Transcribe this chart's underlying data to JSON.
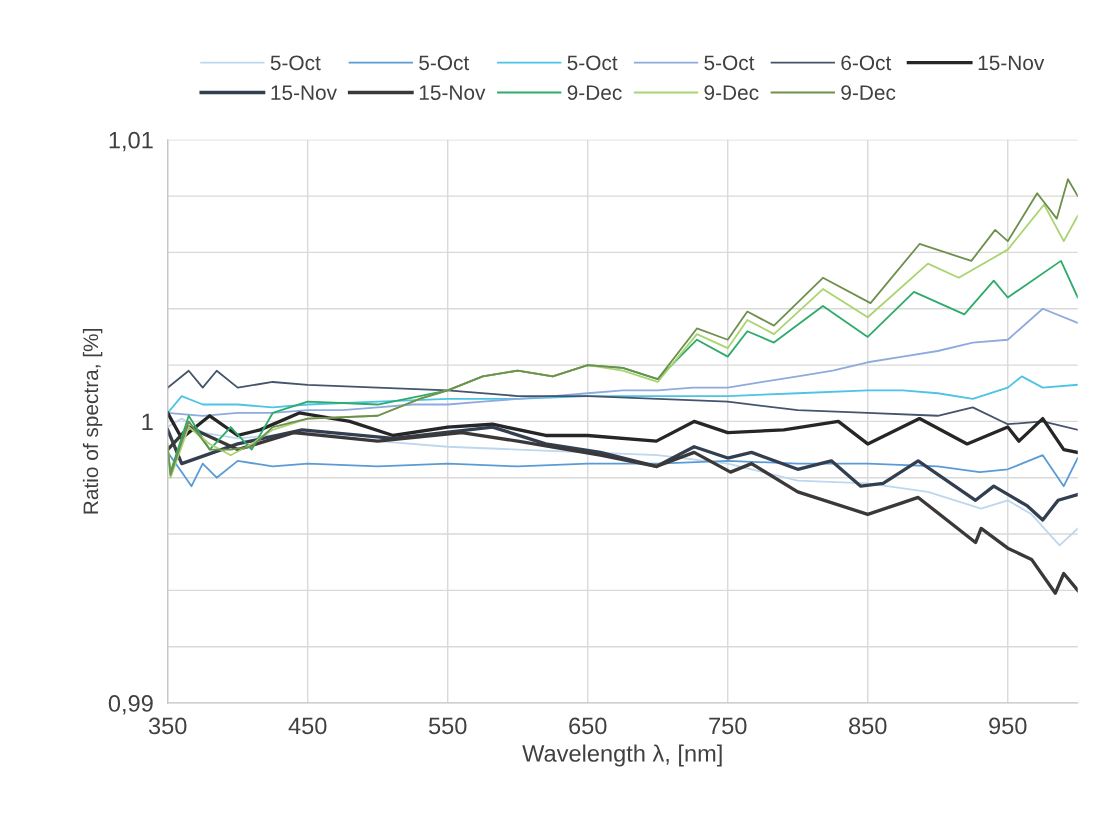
{
  "chart_data": {
    "type": "line",
    "xlabel": "Wavelength λ, [nm]",
    "ylabel": "Ratio of spectra, [%]",
    "xlim": [
      350,
      1000
    ],
    "xticks": [
      350,
      450,
      550,
      650,
      750,
      850,
      950
    ],
    "ylim": [
      0.99,
      1.01
    ],
    "yticks": [
      {
        "value": 0.99,
        "label": "0,99"
      },
      {
        "value": 0.992,
        "label": null
      },
      {
        "value": 0.994,
        "label": null
      },
      {
        "value": 0.996,
        "label": null
      },
      {
        "value": 0.998,
        "label": null
      },
      {
        "value": 1,
        "label": "1"
      },
      {
        "value": 1.002,
        "label": null
      },
      {
        "value": 1.004,
        "label": null
      },
      {
        "value": 1.006,
        "label": null
      },
      {
        "value": 1.008,
        "label": null
      },
      {
        "value": 1.01,
        "label": "1,01"
      }
    ],
    "grid": true,
    "legend": "top",
    "marker": "none",
    "line_style": "solid",
    "series": [
      {
        "name": "5-Oct",
        "color": "#bdd7ee",
        "x": [
          350,
          360,
          375,
          400,
          425,
          450,
          500,
          550,
          600,
          650,
          700,
          750,
          800,
          850,
          893,
          931,
          950,
          967,
          987,
          1000
        ],
        "values": [
          0.9998,
          1.0001,
          0.9996,
          0.9994,
          0.9995,
          0.9996,
          0.9993,
          0.9991,
          0.999,
          0.9989,
          0.9988,
          0.9985,
          0.9979,
          0.9978,
          0.9975,
          0.9969,
          0.9972,
          0.9967,
          0.9956,
          0.9962
        ]
      },
      {
        "name": "5-Oct",
        "color": "#5b9bd5",
        "x": [
          350,
          360,
          367,
          375,
          385,
          400,
          425,
          450,
          500,
          550,
          600,
          650,
          700,
          750,
          800,
          850,
          900,
          930,
          950,
          975,
          990,
          1000
        ],
        "values": [
          0.9989,
          0.9982,
          0.9977,
          0.9985,
          0.998,
          0.9986,
          0.9984,
          0.9985,
          0.9984,
          0.9985,
          0.9984,
          0.9985,
          0.9985,
          0.9986,
          0.9985,
          0.9985,
          0.9984,
          0.9982,
          0.9983,
          0.9988,
          0.9977,
          0.9987
        ]
      },
      {
        "name": "5-Oct",
        "color": "#4dc3e6",
        "x": [
          350,
          360,
          375,
          400,
          425,
          450,
          500,
          550,
          600,
          650,
          700,
          750,
          800,
          850,
          875,
          900,
          925,
          950,
          960,
          975,
          1000
        ],
        "values": [
          1.0003,
          1.0009,
          1.0006,
          1.0006,
          1.0005,
          1.0006,
          1.0007,
          1.0008,
          1.0008,
          1.0009,
          1.0009,
          1.0009,
          1.001,
          1.0011,
          1.0011,
          1.001,
          1.0008,
          1.0012,
          1.0016,
          1.0012,
          1.0013
        ]
      },
      {
        "name": "5-Oct",
        "color": "#8faadc",
        "x": [
          350,
          375,
          400,
          425,
          450,
          475,
          500,
          525,
          550,
          575,
          600,
          625,
          650,
          675,
          700,
          725,
          750,
          775,
          800,
          825,
          850,
          875,
          900,
          925,
          950,
          975,
          1000
        ],
        "values": [
          1.0003,
          1.0002,
          1.0003,
          1.0003,
          1.0004,
          1.0004,
          1.0005,
          1.0006,
          1.0006,
          1.0007,
          1.0008,
          1.0009,
          1.001,
          1.0011,
          1.0011,
          1.0012,
          1.0012,
          1.0014,
          1.0016,
          1.0018,
          1.0021,
          1.0023,
          1.0025,
          1.0028,
          1.0029,
          1.004,
          1.0035
        ]
      },
      {
        "name": "6-Oct",
        "color": "#44546a",
        "x": [
          350,
          365,
          375,
          385,
          400,
          425,
          450,
          500,
          550,
          600,
          650,
          700,
          750,
          800,
          850,
          900,
          925,
          950,
          975,
          1000
        ],
        "values": [
          1.0012,
          1.0018,
          1.0012,
          1.0018,
          1.0012,
          1.0014,
          1.0013,
          1.0012,
          1.0011,
          1.0009,
          1.0009,
          1.0008,
          1.0007,
          1.0004,
          1.0003,
          1.0002,
          1.0005,
          0.9999,
          1.0,
          0.9997
        ]
      },
      {
        "name": "15-Nov",
        "color": "#262626",
        "x": [
          350,
          360,
          380,
          400,
          416,
          444,
          480,
          511,
          550,
          582,
          620,
          650,
          699,
          726,
          750,
          790,
          829,
          850,
          887,
          921,
          950,
          958,
          975,
          990,
          1000
        ],
        "values": [
          1.0003,
          0.9994,
          1.0002,
          0.9995,
          0.9997,
          1.0003,
          1.0,
          0.9995,
          0.9998,
          0.9999,
          0.9995,
          0.9995,
          0.9993,
          1.0,
          0.9996,
          0.9997,
          1.0,
          0.9992,
          1.0001,
          0.9992,
          0.9998,
          0.9993,
          1.0001,
          0.999,
          0.9989
        ]
      },
      {
        "name": "15-Nov",
        "color": "#333f50",
        "x": [
          350,
          360,
          400,
          446,
          511,
          582,
          620,
          659,
          699,
          726,
          750,
          767,
          800,
          824,
          845,
          861,
          886,
          927,
          940,
          964,
          975,
          986,
          1000
        ],
        "values": [
          0.9997,
          0.9985,
          0.9992,
          0.9997,
          0.9994,
          0.9998,
          0.9992,
          0.9989,
          0.9984,
          0.9991,
          0.9987,
          0.9989,
          0.9983,
          0.9986,
          0.9977,
          0.9978,
          0.9986,
          0.9972,
          0.9977,
          0.997,
          0.9965,
          0.9972,
          0.9974
        ]
      },
      {
        "name": "15-Nov",
        "color": "#3a3838",
        "x": [
          350,
          365,
          400,
          440,
          500,
          560,
          600,
          659,
          699,
          726,
          752,
          767,
          800,
          850,
          874,
          886,
          927,
          931,
          950,
          967,
          984,
          990,
          1000
        ],
        "values": [
          0.999,
          0.9998,
          0.999,
          0.9996,
          0.9993,
          0.9996,
          0.9993,
          0.9988,
          0.9984,
          0.9989,
          0.9982,
          0.9985,
          0.9975,
          0.9967,
          0.9971,
          0.9973,
          0.9957,
          0.9962,
          0.9955,
          0.9951,
          0.9939,
          0.9946,
          0.994
        ]
      },
      {
        "name": "9-Dec",
        "color": "#2eab6b",
        "x": [
          350,
          352,
          365,
          380,
          395,
          410,
          425,
          450,
          500,
          530,
          550,
          575,
          600,
          625,
          650,
          675,
          700,
          728,
          750,
          764,
          783,
          818,
          850,
          883,
          919,
          940,
          950,
          988,
          1000
        ],
        "values": [
          0.999,
          0.9982,
          1.0002,
          0.999,
          0.9998,
          0.999,
          1.0003,
          1.0007,
          1.0006,
          1.0009,
          1.0011,
          1.0016,
          1.0018,
          1.0016,
          1.002,
          1.0019,
          1.0015,
          1.0029,
          1.0023,
          1.0032,
          1.0028,
          1.0041,
          1.003,
          1.0046,
          1.0038,
          1.005,
          1.0044,
          1.0057,
          1.0044
        ]
      },
      {
        "name": "9-Dec",
        "color": "#a9d46f",
        "x": [
          350,
          352,
          365,
          380,
          395,
          410,
          425,
          450,
          500,
          530,
          550,
          575,
          600,
          625,
          650,
          675,
          700,
          728,
          750,
          764,
          783,
          818,
          850,
          893,
          915,
          950,
          976,
          990,
          1000
        ],
        "values": [
          0.9992,
          0.998,
          0.9998,
          0.9992,
          0.9988,
          0.9992,
          0.9997,
          1.0001,
          1.0002,
          1.0008,
          1.0011,
          1.0016,
          1.0018,
          1.0016,
          1.002,
          1.0018,
          1.0014,
          1.0031,
          1.0026,
          1.0036,
          1.0031,
          1.0047,
          1.0037,
          1.0056,
          1.0051,
          1.0061,
          1.0077,
          1.0064,
          1.0073
        ]
      },
      {
        "name": "9-Dec",
        "color": "#6e8f4e",
        "x": [
          350,
          352,
          365,
          380,
          395,
          410,
          425,
          450,
          500,
          530,
          550,
          575,
          600,
          625,
          650,
          675,
          700,
          728,
          750,
          764,
          783,
          818,
          852,
          887,
          924,
          941,
          950,
          971,
          985,
          993,
          1000
        ],
        "values": [
          0.9991,
          0.9981,
          1.0,
          0.999,
          0.999,
          0.9991,
          0.9998,
          1.0001,
          1.0002,
          1.0008,
          1.0011,
          1.0016,
          1.0018,
          1.0016,
          1.002,
          1.0019,
          1.0015,
          1.0033,
          1.0029,
          1.0039,
          1.0034,
          1.0051,
          1.0042,
          1.0063,
          1.0057,
          1.0068,
          1.0064,
          1.0081,
          1.0072,
          1.0086,
          1.008
        ]
      }
    ]
  }
}
